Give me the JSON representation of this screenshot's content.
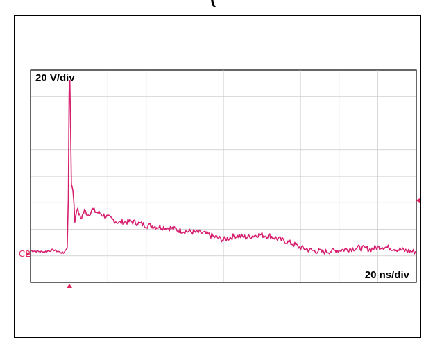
{
  "header": {
    "title": "("
  },
  "scope": {
    "vertical_scale": "20 V/div",
    "horizontal_scale": "20 ns/div",
    "channel_label": "C2"
  },
  "colors": {
    "trace": "#d6206f",
    "marker": "#e0245e",
    "grid": "#c8c8c8",
    "frame": "#000000"
  },
  "chart_data": {
    "type": "line",
    "title": "",
    "xlabel": "",
    "ylabel": "",
    "x_divisions": 10,
    "y_divisions": 8,
    "xlim": [
      0,
      10
    ],
    "ylim": [
      -1.2,
      6.8
    ],
    "series": [
      {
        "x": [
          0,
          0.3,
          0.6,
          0.85,
          0.95,
          0.98,
          1.0,
          1.02,
          1.04,
          1.06,
          1.1,
          1.15,
          1.2,
          1.3,
          1.4,
          1.5,
          1.6,
          1.7,
          1.8,
          2.0,
          2.3,
          2.6,
          3.0,
          3.3,
          3.6,
          3.9,
          4.2,
          4.5,
          4.8,
          5.0,
          5.3,
          5.6,
          5.9,
          6.2,
          6.5,
          6.8,
          7.0,
          7.3,
          7.6,
          7.9,
          8.2,
          8.5,
          8.8,
          9.1,
          9.4,
          9.7,
          10.0
        ],
        "y": [
          0.0,
          -0.05,
          0.02,
          -0.1,
          0.1,
          2.0,
          6.0,
          6.4,
          4.5,
          2.5,
          2.3,
          1.1,
          1.6,
          1.2,
          1.5,
          1.35,
          1.55,
          1.45,
          1.4,
          1.25,
          1.05,
          1.1,
          0.95,
          0.9,
          0.85,
          0.75,
          0.7,
          0.65,
          0.5,
          0.4,
          0.55,
          0.5,
          0.6,
          0.55,
          0.4,
          0.25,
          0.1,
          0.0,
          -0.05,
          0.0,
          0.05,
          0.1,
          0.05,
          0.15,
          0.08,
          0.0,
          -0.05
        ]
      }
    ]
  }
}
